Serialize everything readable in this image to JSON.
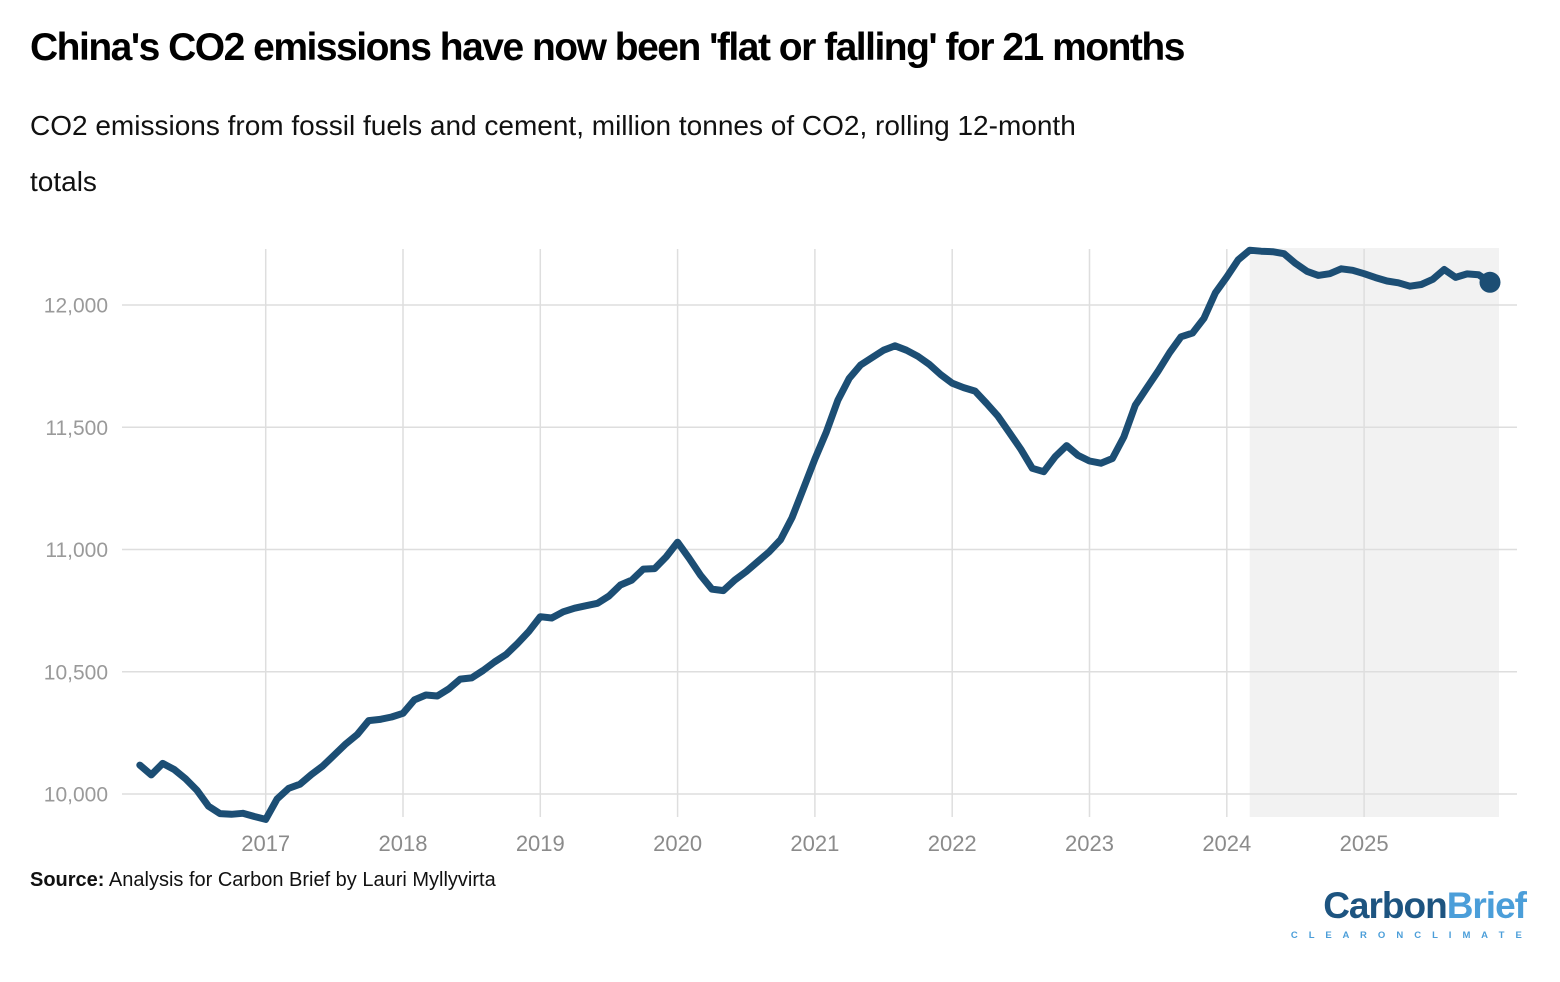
{
  "header": {
    "title": "China's CO2 emissions have now been 'flat or falling' for 21 months",
    "subtitle_line1": "CO2 emissions from fossil fuels and cement, million tonnes of CO2, rolling 12-month",
    "subtitle_line2": "totals"
  },
  "source": {
    "label": "Source:",
    "text": " Analysis for Carbon Brief by Lauri Myllyvirta"
  },
  "logo": {
    "part1": "Carbon",
    "part2": "Brief",
    "tagline": "C L E A R   O N   C L I M A T E"
  },
  "chart_data": {
    "type": "line",
    "title": "China's CO2 emissions have now been 'flat or falling' for 21 months",
    "subtitle": "CO2 emissions from fossil fuels and cement, million tonnes of CO2, rolling 12-month totals",
    "xlabel": "",
    "ylabel": "",
    "x_tick_labels": [
      "2017",
      "2018",
      "2019",
      "2020",
      "2021",
      "2022",
      "2023",
      "2024",
      "2025"
    ],
    "y_ticks": [
      10000,
      10500,
      11000,
      11500,
      12000
    ],
    "y_tick_labels": [
      "10,000",
      "10,500",
      "11,000",
      "11,500",
      "12,000"
    ],
    "ylim": [
      9850,
      12260
    ],
    "xlim": [
      "2016-02",
      "2025-12"
    ],
    "grid": "both",
    "legend": "none",
    "series": [
      {
        "name": "CO2 emissions, rolling 12-month total (million tonnes)",
        "start": "2016-02",
        "frequency": "monthly",
        "values": [
          10118,
          10078,
          10125,
          10100,
          10062,
          10015,
          9950,
          9920,
          9917,
          9921,
          9908,
          9896,
          9980,
          10023,
          10040,
          10080,
          10115,
          10160,
          10205,
          10243,
          10300,
          10305,
          10315,
          10330,
          10385,
          10405,
          10401,
          10430,
          10470,
          10475,
          10505,
          10540,
          10570,
          10615,
          10665,
          10725,
          10720,
          10745,
          10760,
          10770,
          10780,
          10810,
          10855,
          10875,
          10920,
          10922,
          10970,
          11030,
          10965,
          10895,
          10838,
          10832,
          10875,
          10910,
          10950,
          10990,
          11040,
          11130,
          11250,
          11370,
          11480,
          11610,
          11700,
          11755,
          11785,
          11815,
          11833,
          11815,
          11790,
          11757,
          11715,
          11680,
          11662,
          11648,
          11598,
          11545,
          11478,
          11410,
          11332,
          11318,
          11380,
          11425,
          11385,
          11362,
          11353,
          11372,
          11460,
          11590,
          11660,
          11730,
          11805,
          11870,
          11885,
          11945,
          12050,
          12115,
          12185,
          12224,
          12220,
          12218,
          12210,
          12170,
          12138,
          12121,
          12128,
          12148,
          12142,
          12128,
          12112,
          12098,
          12091,
          12077,
          12084,
          12105,
          12145,
          12113,
          12127,
          12124,
          12093
        ]
      }
    ],
    "highlight_region": {
      "start": "2024-03",
      "end": "2025-12",
      "meaning": "21-month flat-or-falling period"
    },
    "end_point": {
      "date": "2025-12",
      "value": 12093
    },
    "colors": {
      "line": "#1c4e74",
      "marker": "#1c4e74",
      "highlight": "#f2f2f2",
      "grid": "#dedede",
      "y_tick_text": "#9a9a9a",
      "x_tick_text": "#8b8b8b"
    }
  }
}
